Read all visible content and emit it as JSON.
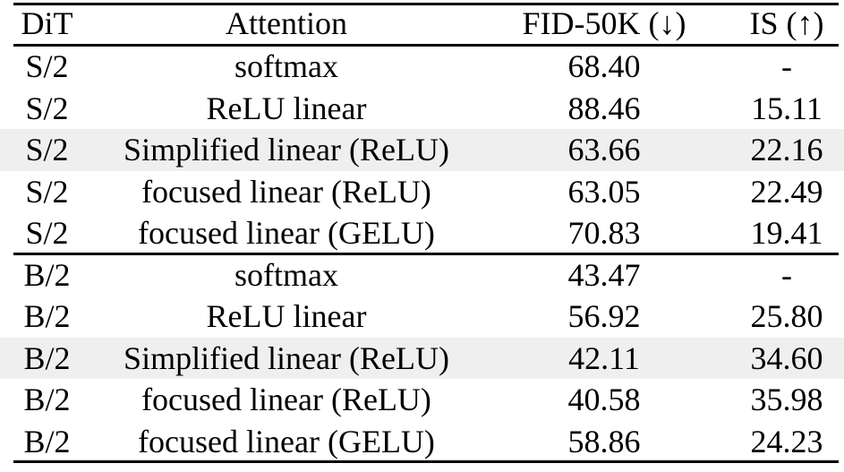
{
  "table": {
    "columns": [
      {
        "key": "dit",
        "label": "DiT"
      },
      {
        "key": "attention",
        "label": "Attention"
      },
      {
        "key": "fid",
        "label": "FID-50K (↓)"
      },
      {
        "key": "is",
        "label": "IS (↑)"
      }
    ],
    "rows": [
      {
        "dit": "S/2",
        "attention": "softmax",
        "fid": "68.40",
        "is": "-",
        "shaded": false,
        "bold_values": false
      },
      {
        "dit": "S/2",
        "attention": "ReLU linear",
        "fid": "88.46",
        "is": "15.11",
        "shaded": false,
        "bold_values": false
      },
      {
        "dit": "S/2",
        "attention": "Simplified linear (ReLU)",
        "fid": "63.66",
        "is": "22.16",
        "shaded": true,
        "bold_values": false
      },
      {
        "dit": "S/2",
        "attention": "focused linear (ReLU)",
        "fid": "63.05",
        "is": "22.49",
        "shaded": false,
        "bold_values": true
      },
      {
        "dit": "S/2",
        "attention": "focused linear (GELU)",
        "fid": "70.83",
        "is": "19.41",
        "shaded": false,
        "bold_values": false
      },
      {
        "dit": "B/2",
        "attention": "softmax",
        "fid": "43.47",
        "is": "-",
        "shaded": false,
        "bold_values": false
      },
      {
        "dit": "B/2",
        "attention": "ReLU linear",
        "fid": "56.92",
        "is": "25.80",
        "shaded": false,
        "bold_values": false
      },
      {
        "dit": "B/2",
        "attention": "Simplified linear (ReLU)",
        "fid": "42.11",
        "is": "34.60",
        "shaded": true,
        "bold_values": false
      },
      {
        "dit": "B/2",
        "attention": "focused linear (ReLU)",
        "fid": "40.58",
        "is": "35.98",
        "shaded": false,
        "bold_values": true
      },
      {
        "dit": "B/2",
        "attention": "focused linear (GELU)",
        "fid": "58.86",
        "is": "24.23",
        "shaded": false,
        "bold_values": false
      }
    ]
  },
  "colors": {
    "text": "#000000",
    "rule": "#000000",
    "row_shade": "#efefef",
    "background": "#ffffff"
  }
}
